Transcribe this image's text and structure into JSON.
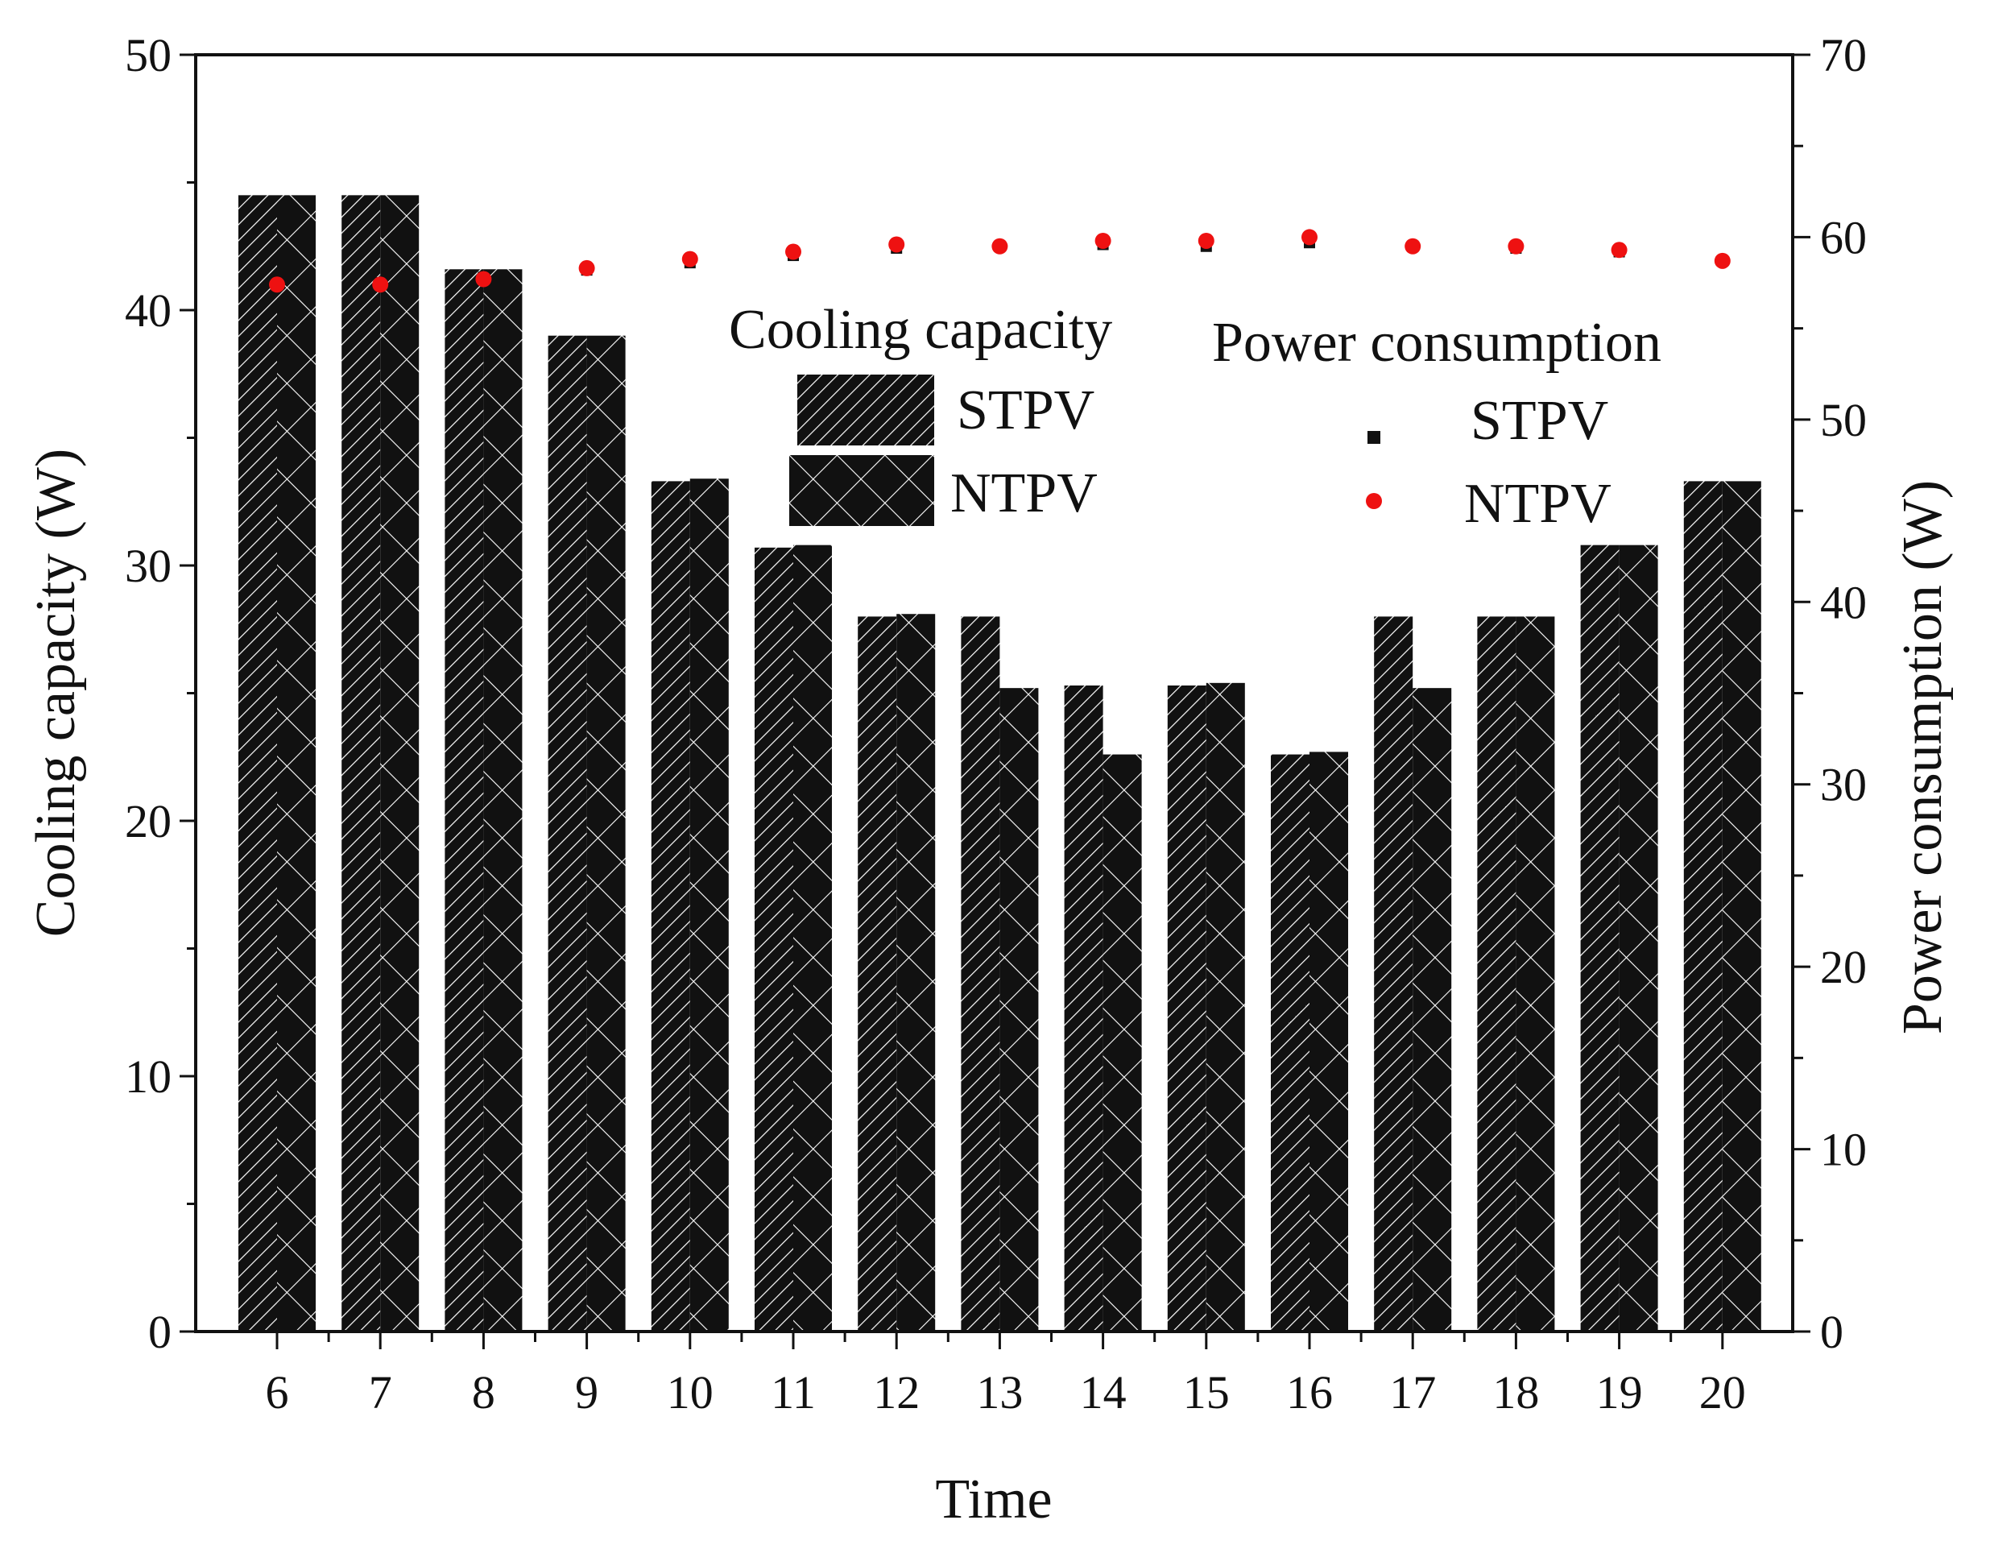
{
  "chart_data": {
    "type": "bar",
    "title": "",
    "xlabel": "Time",
    "ylabel": "Cooling capacity (W)",
    "y2label": "Power consumption (W)",
    "categories": [
      "6",
      "7",
      "8",
      "9",
      "10",
      "11",
      "12",
      "13",
      "14",
      "15",
      "16",
      "17",
      "18",
      "19",
      "20"
    ],
    "ylim": [
      0,
      50
    ],
    "y2lim": [
      0,
      70
    ],
    "yticks": [
      "0",
      "10",
      "20",
      "30",
      "40",
      "50"
    ],
    "y2ticks": [
      "0",
      "10",
      "20",
      "30",
      "40",
      "50",
      "60",
      "70"
    ],
    "bar_series": [
      {
        "name": "STPV",
        "pattern": "diagonal",
        "values": [
          44.5,
          44.5,
          41.6,
          39.0,
          33.3,
          30.7,
          28.0,
          28.0,
          25.3,
          25.3,
          22.6,
          28.0,
          28.0,
          30.8,
          33.3
        ]
      },
      {
        "name": "NTPV",
        "pattern": "crosshatch",
        "values": [
          44.5,
          44.5,
          41.6,
          39.0,
          33.4,
          30.8,
          28.1,
          25.2,
          22.6,
          25.4,
          22.7,
          25.2,
          28.0,
          30.8,
          33.3
        ]
      }
    ],
    "scatter_series": [
      {
        "name": "STPV",
        "marker": "square",
        "color": "#111111",
        "axis": "right",
        "values": [
          57.5,
          57.5,
          57.8,
          58.2,
          58.6,
          59.0,
          59.4,
          59.5,
          59.6,
          59.5,
          59.7,
          59.5,
          59.4,
          59.2,
          58.7
        ]
      },
      {
        "name": "NTPV",
        "marker": "circle",
        "color": "#ee1111",
        "axis": "right",
        "values": [
          57.4,
          57.4,
          57.7,
          58.3,
          58.8,
          59.2,
          59.6,
          59.5,
          59.8,
          59.8,
          60.0,
          59.5,
          59.5,
          59.3,
          58.7
        ]
      }
    ],
    "legend": {
      "bar_title": "Cooling capacity",
      "scatter_title": "Power consumption",
      "placement": "top-right"
    }
  }
}
